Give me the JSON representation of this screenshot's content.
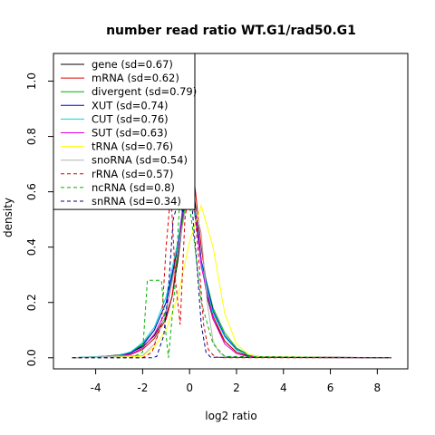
{
  "chart_data": {
    "type": "line",
    "title": "number read ratio WT.G1/rad50.G1",
    "xlabel": "log2 ratio",
    "ylabel": "density",
    "xlim": [
      -5.8,
      9.3
    ],
    "ylim": [
      -0.04,
      1.1
    ],
    "x_ticks": [
      -4,
      -2,
      0,
      2,
      4,
      6,
      8
    ],
    "y_ticks": [
      0.0,
      0.2,
      0.4,
      0.6,
      0.8,
      1.0
    ],
    "x_tick_labels": [
      "-4",
      "-2",
      "0",
      "2",
      "4",
      "6",
      "8"
    ],
    "y_tick_labels": [
      "0.0",
      "0.2",
      "0.4",
      "0.6",
      "0.8",
      "1.0"
    ],
    "grid": false,
    "legend_position": "top-left",
    "series": [
      {
        "name": "gene (sd=0.67)",
        "color": "#000000",
        "dash": "solid",
        "x": [
          -5,
          -4,
          -3,
          -2.5,
          -2,
          -1.5,
          -1,
          -0.75,
          -0.5,
          -0.25,
          0,
          0.25,
          0.5,
          0.75,
          1,
          1.5,
          2,
          2.5,
          3,
          4,
          8.6
        ],
        "y": [
          0,
          0.003,
          0.01,
          0.02,
          0.04,
          0.08,
          0.15,
          0.22,
          0.35,
          0.52,
          0.72,
          0.55,
          0.35,
          0.22,
          0.14,
          0.06,
          0.02,
          0.008,
          0.003,
          0.001,
          0
        ]
      },
      {
        "name": "mRNA (sd=0.62)",
        "color": "#df0000",
        "dash": "solid",
        "x": [
          -5,
          -3,
          -2.5,
          -2,
          -1.5,
          -1,
          -0.75,
          -0.5,
          -0.25,
          0,
          0.25,
          0.5,
          0.75,
          1,
          1.5,
          2,
          2.5,
          3,
          8.6
        ],
        "y": [
          0,
          0.004,
          0.012,
          0.03,
          0.07,
          0.14,
          0.22,
          0.38,
          0.55,
          0.78,
          0.6,
          0.4,
          0.25,
          0.15,
          0.06,
          0.02,
          0.006,
          0.002,
          0
        ]
      },
      {
        "name": "divergent (sd=0.79)",
        "color": "#00b400",
        "dash": "solid",
        "x": [
          -5,
          -3,
          -2.5,
          -2,
          -1.5,
          -1,
          -0.5,
          -0.25,
          0,
          0.25,
          0.5,
          1,
          1.5,
          2,
          2.5,
          3,
          8.6
        ],
        "y": [
          0,
          0.008,
          0.02,
          0.05,
          0.1,
          0.2,
          0.38,
          0.52,
          0.62,
          0.5,
          0.35,
          0.18,
          0.09,
          0.035,
          0.012,
          0.004,
          0
        ]
      },
      {
        "name": "XUT (sd=0.74)",
        "color": "#0000e0",
        "dash": "solid",
        "x": [
          -5,
          -3,
          -2.5,
          -2,
          -1.5,
          -1,
          -0.5,
          -0.25,
          0,
          0.25,
          0.5,
          1,
          1.5,
          2,
          2.5,
          3,
          8.6
        ],
        "y": [
          0,
          0.006,
          0.018,
          0.045,
          0.1,
          0.2,
          0.4,
          0.55,
          0.65,
          0.52,
          0.35,
          0.17,
          0.08,
          0.03,
          0.01,
          0.003,
          0
        ]
      },
      {
        "name": "CUT (sd=0.76)",
        "color": "#00d8d8",
        "dash": "solid",
        "x": [
          -5,
          -3,
          -2.5,
          -2,
          -1.5,
          -1,
          -0.5,
          -0.25,
          0,
          0.25,
          0.5,
          1,
          1.5,
          2,
          2.5,
          3,
          4,
          8.6
        ],
        "y": [
          0,
          0.008,
          0.022,
          0.055,
          0.11,
          0.22,
          0.42,
          0.56,
          0.63,
          0.5,
          0.34,
          0.16,
          0.075,
          0.028,
          0.01,
          0.004,
          0.001,
          0
        ]
      },
      {
        "name": "SUT (sd=0.63)",
        "color": "#e000e0",
        "dash": "solid",
        "x": [
          -5,
          -3,
          -2.5,
          -2,
          -1.5,
          -1,
          -0.5,
          -0.25,
          0,
          0.25,
          0.5,
          1,
          1.5,
          2,
          2.5,
          8.6
        ],
        "y": [
          0,
          0.005,
          0.014,
          0.035,
          0.085,
          0.17,
          0.38,
          0.58,
          0.68,
          0.52,
          0.33,
          0.14,
          0.05,
          0.015,
          0.004,
          0
        ]
      },
      {
        "name": "tRNA (sd=0.76)",
        "color": "#ffff00",
        "dash": "solid",
        "x": [
          -5,
          -2,
          -1.5,
          -1,
          -0.5,
          0,
          0.5,
          1,
          1.5,
          2,
          2.5,
          3,
          8.6
        ],
        "y": [
          0,
          0.005,
          0.04,
          0.1,
          0.22,
          0.42,
          0.55,
          0.4,
          0.16,
          0.05,
          0.012,
          0.003,
          0
        ]
      },
      {
        "name": "snoRNA (sd=0.54)",
        "color": "#b4b4b4",
        "dash": "solid",
        "x": [
          -5,
          -2,
          -1.5,
          -1,
          -0.5,
          0,
          0.5,
          0.75,
          1,
          1.25,
          1.5,
          2,
          8.6
        ],
        "y": [
          0,
          0.008,
          0.05,
          0.16,
          0.38,
          0.62,
          0.45,
          0.2,
          0.06,
          0.02,
          0.005,
          0.001,
          0
        ]
      },
      {
        "name": "rRNA (sd=0.57)",
        "color": "#df0000",
        "dash": "dashed",
        "x": [
          -5,
          -2,
          -1.6,
          -1.2,
          -1,
          -0.8,
          -0.6,
          -0.4,
          -0.2,
          0,
          0.2,
          0.4,
          0.6,
          0.8,
          1,
          1.2,
          1.5,
          8.6
        ],
        "y": [
          0,
          0,
          0.02,
          0.12,
          0.4,
          0.6,
          0.28,
          0.12,
          0.5,
          0.62,
          0.55,
          0.35,
          0.12,
          0.03,
          0.01,
          0.002,
          0,
          0
        ]
      },
      {
        "name": "ncRNA (sd=0.8)",
        "color": "#00b400",
        "dash": "dashed",
        "x": [
          -5,
          -2.5,
          -2,
          -1.8,
          -1.2,
          -1,
          -0.9,
          -0.6,
          -0.4,
          -0.2,
          0,
          0.2,
          0.5,
          1,
          1.5,
          8.6
        ],
        "y": [
          0,
          0,
          0.02,
          0.28,
          0.28,
          0.08,
          0.0,
          0.28,
          0.6,
          0.62,
          0.55,
          0.42,
          0.2,
          0.05,
          0.005,
          0
        ]
      },
      {
        "name": "snRNA (sd=0.34)",
        "color": "#00008b",
        "dash": "dashed",
        "x": [
          -5,
          -1.6,
          -1.4,
          -1.1,
          -0.9,
          -0.7,
          -0.5,
          -0.3,
          -0.1,
          0.1,
          0.3,
          0.5,
          0.7,
          0.9,
          8.6
        ],
        "y": [
          0,
          0,
          0.005,
          0.08,
          0.25,
          0.5,
          0.56,
          0.53,
          0.58,
          0.55,
          0.35,
          0.12,
          0.02,
          0.002,
          0
        ]
      }
    ]
  }
}
